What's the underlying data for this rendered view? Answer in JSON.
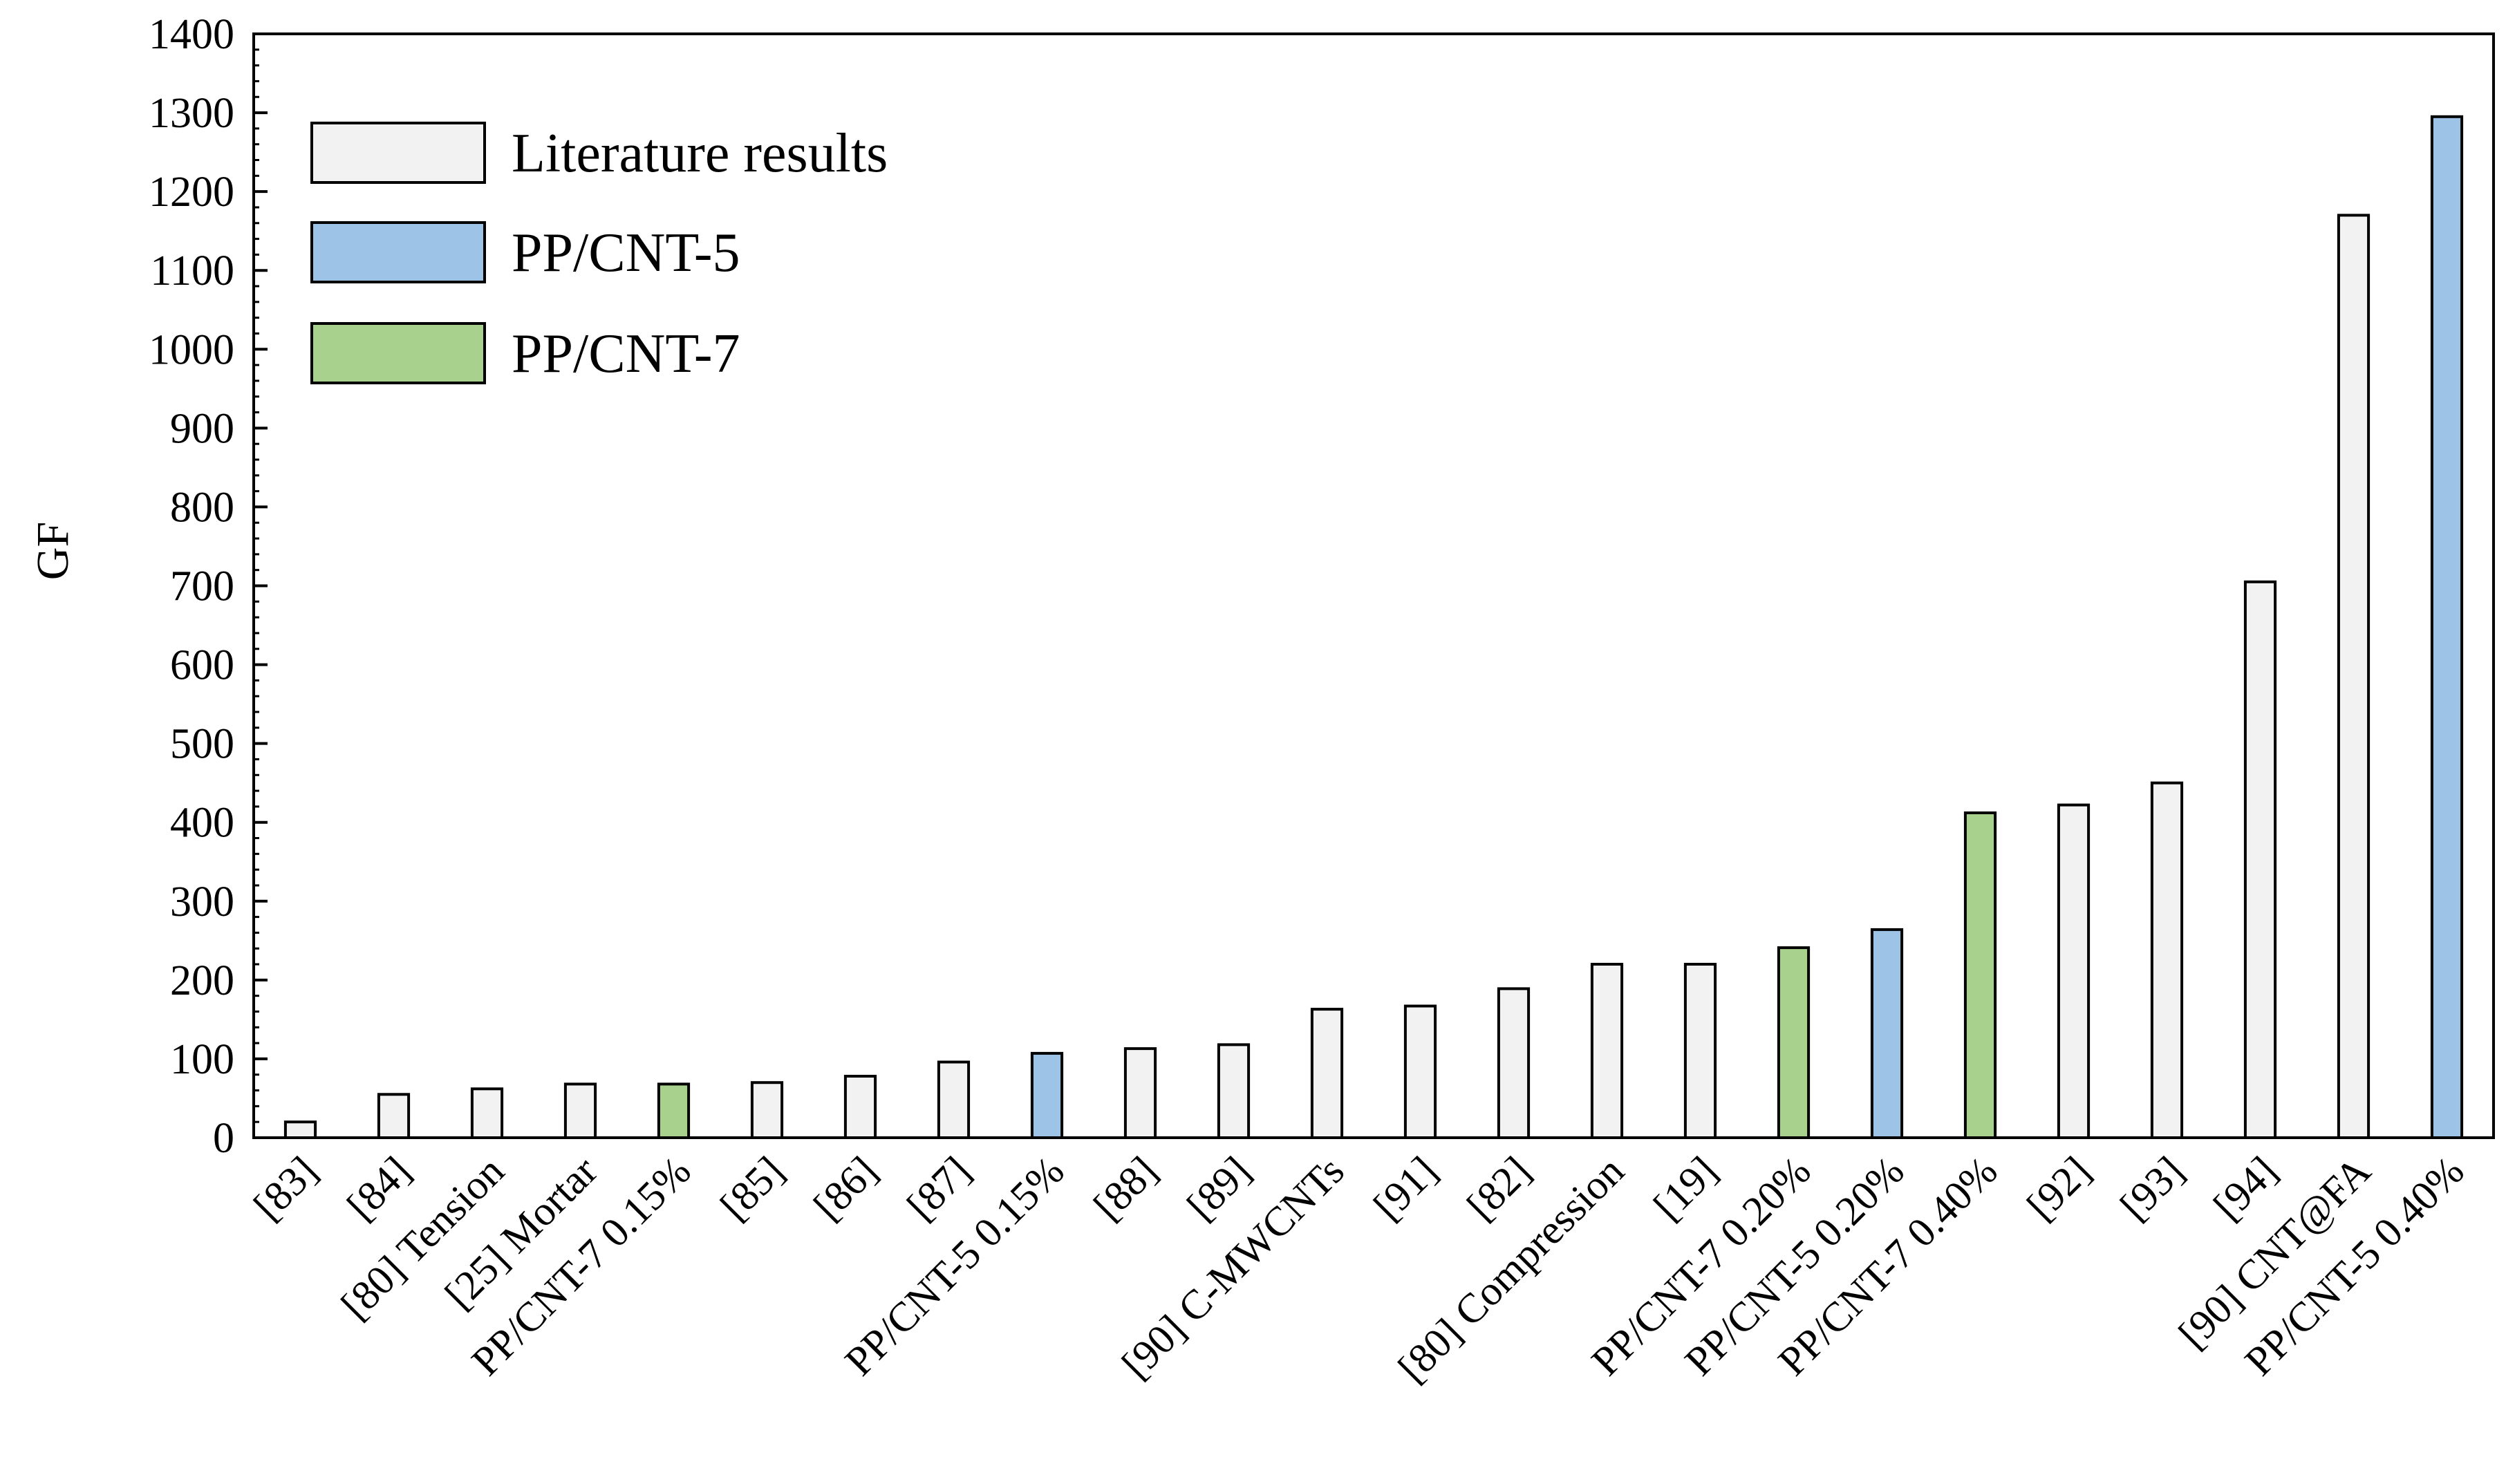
{
  "chart_data": {
    "type": "bar",
    "title": "",
    "xlabel": "",
    "ylabel": "GF",
    "ylim": [
      0,
      1400
    ],
    "yticks": [
      0,
      100,
      200,
      300,
      400,
      500,
      600,
      700,
      800,
      900,
      1000,
      1100,
      1200,
      1300,
      1400
    ],
    "yminor_step": 20,
    "grid": false,
    "legend_position": "top-left",
    "legend": [
      {
        "label": "Literature results",
        "color": "#f2f2f2"
      },
      {
        "label": "PP/CNT-5",
        "color": "#9dc3e6"
      },
      {
        "label": "PP/CNT-7",
        "color": "#a9d18e"
      }
    ],
    "categories": [
      "[83]",
      "[84]",
      "[80] Tension",
      "[25] Mortar",
      "PP/CNT-7 0.15%",
      "[85]",
      "[86]",
      "[87]",
      "PP/CNT-5 0.15%",
      "[88]",
      "[89]",
      "[90] C-MWCNTs",
      "[91]",
      "[82]",
      "[80] Compression",
      "[19]",
      "PP/CNT-7 0.20%",
      "PP/CNT-5 0.20%",
      "PP/CNT-7 0.40%",
      "[92]",
      "[93]",
      "[94]",
      "[90] CNT@FA",
      "PP/CNT-5 0.40%"
    ],
    "values": [
      20,
      55,
      62,
      68,
      68,
      70,
      78,
      96,
      107,
      113,
      118,
      163,
      167,
      189,
      220,
      220,
      241,
      264,
      412,
      422,
      450,
      705,
      1170,
      1295
    ],
    "series_of_bar": [
      "Literature results",
      "Literature results",
      "Literature results",
      "Literature results",
      "PP/CNT-7",
      "Literature results",
      "Literature results",
      "Literature results",
      "PP/CNT-5",
      "Literature results",
      "Literature results",
      "Literature results",
      "Literature results",
      "Literature results",
      "Literature results",
      "Literature results",
      "PP/CNT-7",
      "PP/CNT-5",
      "PP/CNT-7",
      "Literature results",
      "Literature results",
      "Literature results",
      "Literature results",
      "PP/CNT-5"
    ]
  }
}
